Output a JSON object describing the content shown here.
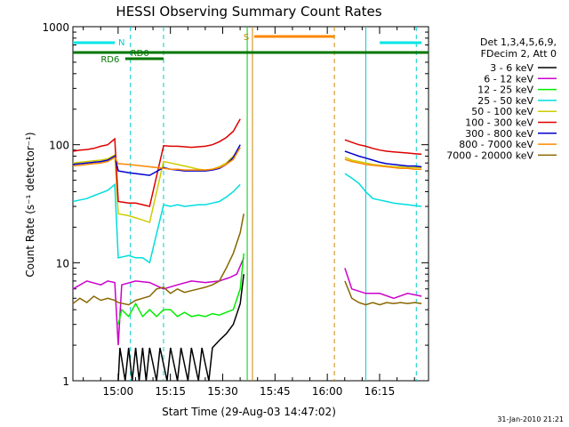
{
  "chart_data": {
    "type": "line",
    "title": "HESSI Observing Summary Count Rates",
    "xlabel": "Start Time (29-Aug-03 14:47:02)",
    "ylabel": "Count Rate (s⁻¹ detector⁻¹)",
    "yscale": "log",
    "ylim": [
      1,
      1000
    ],
    "xlim_minutes_after_start": [
      0,
      102
    ],
    "x_ticks": [
      "15:00",
      "15:15",
      "15:30",
      "15:45",
      "16:00",
      "16:15"
    ],
    "y_ticks": [
      "1",
      "10",
      "100",
      "1000"
    ],
    "legend_header": [
      "Det 1,3,4,5,6,9,",
      "FDecim 2, Att 0"
    ],
    "footer_date": "31-Jan-2010 21:21",
    "flag_labels": {
      "night": "N",
      "saa": "S",
      "rd6": "RD6",
      "rd0": "RD0"
    },
    "series": [
      {
        "name": "3 - 6 keV",
        "color": "#000000",
        "points": [
          [
            13,
            1
          ],
          [
            13.5,
            1.9
          ],
          [
            15,
            1
          ],
          [
            16,
            1.9
          ],
          [
            17,
            1
          ],
          [
            18,
            1.9
          ],
          [
            19,
            1
          ],
          [
            20,
            1.9
          ],
          [
            21,
            1
          ],
          [
            22,
            1.9
          ],
          [
            24,
            1
          ],
          [
            25,
            1.9
          ],
          [
            27,
            1
          ],
          [
            28,
            1.9
          ],
          [
            30,
            1
          ],
          [
            31,
            1.9
          ],
          [
            33,
            1
          ],
          [
            34,
            1.9
          ],
          [
            36,
            1
          ],
          [
            37,
            1.9
          ],
          [
            39,
            1
          ],
          [
            40,
            1.9
          ],
          [
            42,
            2.2
          ],
          [
            44,
            2.5
          ],
          [
            46,
            3
          ],
          [
            48,
            4.5
          ],
          [
            49,
            8
          ]
        ]
      },
      {
        "name": "6 - 12 keV",
        "color": "#cc00cc",
        "points": [
          [
            0,
            6
          ],
          [
            4,
            7
          ],
          [
            8,
            6.5
          ],
          [
            10,
            7
          ],
          [
            12,
            6.8
          ],
          [
            13,
            2
          ],
          [
            14,
            6.5
          ],
          [
            18,
            7
          ],
          [
            22,
            6.8
          ],
          [
            26,
            6
          ],
          [
            30,
            6.5
          ],
          [
            34,
            7
          ],
          [
            38,
            6.8
          ],
          [
            42,
            7
          ],
          [
            45,
            7.5
          ],
          [
            47,
            8
          ],
          [
            49,
            11
          ],
          [
            78,
            9
          ],
          [
            80,
            6
          ],
          [
            84,
            5.5
          ],
          [
            88,
            5.5
          ],
          [
            92,
            5
          ],
          [
            96,
            5.5
          ],
          [
            100,
            5.2
          ]
        ]
      },
      {
        "name": "12 - 25 keV",
        "color": "#00ee00",
        "points": [
          [
            13,
            3
          ],
          [
            14,
            4
          ],
          [
            16,
            3.5
          ],
          [
            18,
            4.5
          ],
          [
            20,
            3.5
          ],
          [
            22,
            4
          ],
          [
            24,
            3.5
          ],
          [
            26,
            4
          ],
          [
            28,
            4
          ],
          [
            30,
            3.5
          ],
          [
            32,
            3.8
          ],
          [
            34,
            3.5
          ],
          [
            36,
            3.6
          ],
          [
            38,
            3.5
          ],
          [
            40,
            3.7
          ],
          [
            42,
            3.6
          ],
          [
            44,
            3.8
          ],
          [
            46,
            4
          ],
          [
            48,
            6
          ],
          [
            49,
            12
          ]
        ]
      },
      {
        "name": "25 - 50 keV",
        "color": "#00dddd",
        "points": [
          [
            0,
            33
          ],
          [
            2,
            34
          ],
          [
            4,
            35
          ],
          [
            6,
            37
          ],
          [
            8,
            39
          ],
          [
            10,
            41
          ],
          [
            12,
            46
          ],
          [
            13,
            11
          ],
          [
            16,
            11.5
          ],
          [
            18,
            11
          ],
          [
            20,
            11
          ],
          [
            22,
            10
          ],
          [
            26,
            31
          ],
          [
            28,
            30
          ],
          [
            30,
            31
          ],
          [
            32,
            30
          ],
          [
            34,
            30.5
          ],
          [
            36,
            31
          ],
          [
            38,
            31
          ],
          [
            40,
            32
          ],
          [
            42,
            33
          ],
          [
            44,
            36
          ],
          [
            46,
            40
          ],
          [
            48,
            46
          ],
          [
            78,
            57
          ],
          [
            80,
            52
          ],
          [
            82,
            47
          ],
          [
            84,
            40
          ],
          [
            86,
            35
          ],
          [
            88,
            34
          ],
          [
            90,
            33
          ],
          [
            92,
            32
          ],
          [
            94,
            31.5
          ],
          [
            96,
            31
          ],
          [
            98,
            30.5
          ],
          [
            100,
            30
          ]
        ]
      },
      {
        "name": "50 - 100 keV",
        "color": "#cccc00",
        "points": [
          [
            0,
            70
          ],
          [
            2,
            71
          ],
          [
            4,
            72
          ],
          [
            6,
            73
          ],
          [
            8,
            74
          ],
          [
            10,
            76
          ],
          [
            12,
            82
          ],
          [
            13,
            26
          ],
          [
            16,
            25
          ],
          [
            18,
            24
          ],
          [
            20,
            23
          ],
          [
            22,
            22
          ],
          [
            26,
            72
          ],
          [
            28,
            70
          ],
          [
            30,
            68
          ],
          [
            32,
            66
          ],
          [
            34,
            64
          ],
          [
            36,
            62
          ],
          [
            38,
            61
          ],
          [
            40,
            62
          ],
          [
            42,
            65
          ],
          [
            44,
            70
          ],
          [
            46,
            80
          ],
          [
            48,
            95
          ],
          [
            78,
            78
          ],
          [
            80,
            74
          ],
          [
            82,
            72
          ],
          [
            84,
            70
          ],
          [
            86,
            68
          ],
          [
            88,
            67
          ],
          [
            90,
            66
          ],
          [
            92,
            65
          ],
          [
            94,
            65
          ],
          [
            96,
            64
          ],
          [
            98,
            64
          ],
          [
            100,
            64
          ]
        ]
      },
      {
        "name": "100 - 300 keV",
        "color": "#dd0000",
        "points": [
          [
            0,
            88
          ],
          [
            2,
            90
          ],
          [
            4,
            91
          ],
          [
            6,
            93
          ],
          [
            8,
            97
          ],
          [
            10,
            100
          ],
          [
            12,
            112
          ],
          [
            13,
            33
          ],
          [
            16,
            32
          ],
          [
            18,
            32
          ],
          [
            20,
            31
          ],
          [
            22,
            30
          ],
          [
            26,
            98
          ],
          [
            28,
            97
          ],
          [
            30,
            97
          ],
          [
            32,
            96
          ],
          [
            34,
            95
          ],
          [
            36,
            96
          ],
          [
            38,
            97
          ],
          [
            40,
            100
          ],
          [
            42,
            106
          ],
          [
            44,
            115
          ],
          [
            46,
            130
          ],
          [
            48,
            165
          ],
          [
            78,
            110
          ],
          [
            80,
            105
          ],
          [
            82,
            100
          ],
          [
            84,
            97
          ],
          [
            86,
            93
          ],
          [
            88,
            90
          ],
          [
            90,
            88
          ],
          [
            92,
            87
          ],
          [
            94,
            86
          ],
          [
            96,
            85
          ],
          [
            98,
            84
          ],
          [
            100,
            83
          ]
        ]
      },
      {
        "name": "300 - 800 keV",
        "color": "#0000cc",
        "points": [
          [
            0,
            68
          ],
          [
            2,
            69
          ],
          [
            4,
            70
          ],
          [
            6,
            71
          ],
          [
            8,
            72
          ],
          [
            10,
            74
          ],
          [
            12,
            80
          ],
          [
            13,
            60
          ],
          [
            16,
            58
          ],
          [
            18,
            57
          ],
          [
            20,
            56
          ],
          [
            22,
            55
          ],
          [
            26,
            64
          ],
          [
            28,
            62
          ],
          [
            30,
            61
          ],
          [
            32,
            60
          ],
          [
            34,
            60
          ],
          [
            36,
            60
          ],
          [
            38,
            60
          ],
          [
            40,
            61
          ],
          [
            42,
            63
          ],
          [
            44,
            68
          ],
          [
            46,
            78
          ],
          [
            48,
            100
          ],
          [
            78,
            88
          ],
          [
            80,
            84
          ],
          [
            82,
            80
          ],
          [
            84,
            77
          ],
          [
            86,
            74
          ],
          [
            88,
            71
          ],
          [
            90,
            69
          ],
          [
            92,
            68
          ],
          [
            94,
            67
          ],
          [
            96,
            66
          ],
          [
            98,
            66
          ],
          [
            100,
            65
          ]
        ]
      },
      {
        "name": "800 - 7000 keV",
        "color": "#ff8800",
        "points": [
          [
            0,
            66
          ],
          [
            2,
            67
          ],
          [
            4,
            68
          ],
          [
            6,
            69
          ],
          [
            8,
            70
          ],
          [
            10,
            72
          ],
          [
            12,
            78
          ],
          [
            13,
            69
          ],
          [
            16,
            68
          ],
          [
            18,
            67
          ],
          [
            20,
            66
          ],
          [
            22,
            65
          ],
          [
            26,
            63
          ],
          [
            28,
            62
          ],
          [
            30,
            62
          ],
          [
            32,
            61
          ],
          [
            34,
            61
          ],
          [
            36,
            61
          ],
          [
            38,
            61
          ],
          [
            40,
            62
          ],
          [
            42,
            64
          ],
          [
            44,
            68
          ],
          [
            46,
            75
          ],
          [
            48,
            95
          ],
          [
            78,
            75
          ],
          [
            80,
            72
          ],
          [
            82,
            70
          ],
          [
            84,
            68
          ],
          [
            86,
            67
          ],
          [
            88,
            66
          ],
          [
            90,
            65
          ],
          [
            92,
            64
          ],
          [
            94,
            63
          ],
          [
            96,
            63
          ],
          [
            98,
            62
          ],
          [
            100,
            62
          ]
        ]
      },
      {
        "name": "7000 - 20000 keV",
        "color": "#886600",
        "points": [
          [
            0,
            4.5
          ],
          [
            2,
            5
          ],
          [
            4,
            4.6
          ],
          [
            6,
            5.2
          ],
          [
            8,
            4.8
          ],
          [
            10,
            5
          ],
          [
            12,
            4.8
          ],
          [
            13,
            4.6
          ],
          [
            16,
            4.4
          ],
          [
            18,
            4.8
          ],
          [
            20,
            5
          ],
          [
            22,
            5.2
          ],
          [
            24,
            6
          ],
          [
            26,
            6.2
          ],
          [
            28,
            5.5
          ],
          [
            30,
            6
          ],
          [
            32,
            5.6
          ],
          [
            34,
            5.8
          ],
          [
            36,
            6
          ],
          [
            38,
            6.2
          ],
          [
            40,
            6.5
          ],
          [
            42,
            7
          ],
          [
            44,
            9
          ],
          [
            46,
            12
          ],
          [
            48,
            18
          ],
          [
            49,
            26
          ],
          [
            78,
            7
          ],
          [
            80,
            5
          ],
          [
            82,
            4.6
          ],
          [
            84,
            4.4
          ],
          [
            86,
            4.6
          ],
          [
            88,
            4.4
          ],
          [
            90,
            4.6
          ],
          [
            92,
            4.5
          ],
          [
            94,
            4.6
          ],
          [
            96,
            4.5
          ],
          [
            98,
            4.6
          ],
          [
            100,
            4.5
          ]
        ]
      }
    ],
    "flags": {
      "night_segments": [
        [
          0,
          12
        ],
        [
          88,
          100
        ]
      ],
      "saa_segment": [
        52,
        75
      ],
      "rd6_segment": [
        0,
        102
      ],
      "rd0_segment": [
        15,
        26
      ]
    },
    "vertical_markers": [
      {
        "x": 16.5,
        "color": "#00cccc",
        "style": "dashed"
      },
      {
        "x": 26,
        "color": "#00cccc",
        "style": "dashed"
      },
      {
        "x": 50,
        "color": "#00cc00",
        "style": "solid"
      },
      {
        "x": 51.5,
        "color": "#cc8800",
        "style": "solid"
      },
      {
        "x": 75,
        "color": "#cc8800",
        "style": "dashed"
      },
      {
        "x": 84,
        "color": "#00cccc",
        "style": "solid"
      },
      {
        "x": 98.5,
        "color": "#00cccc",
        "style": "dashed"
      }
    ]
  }
}
